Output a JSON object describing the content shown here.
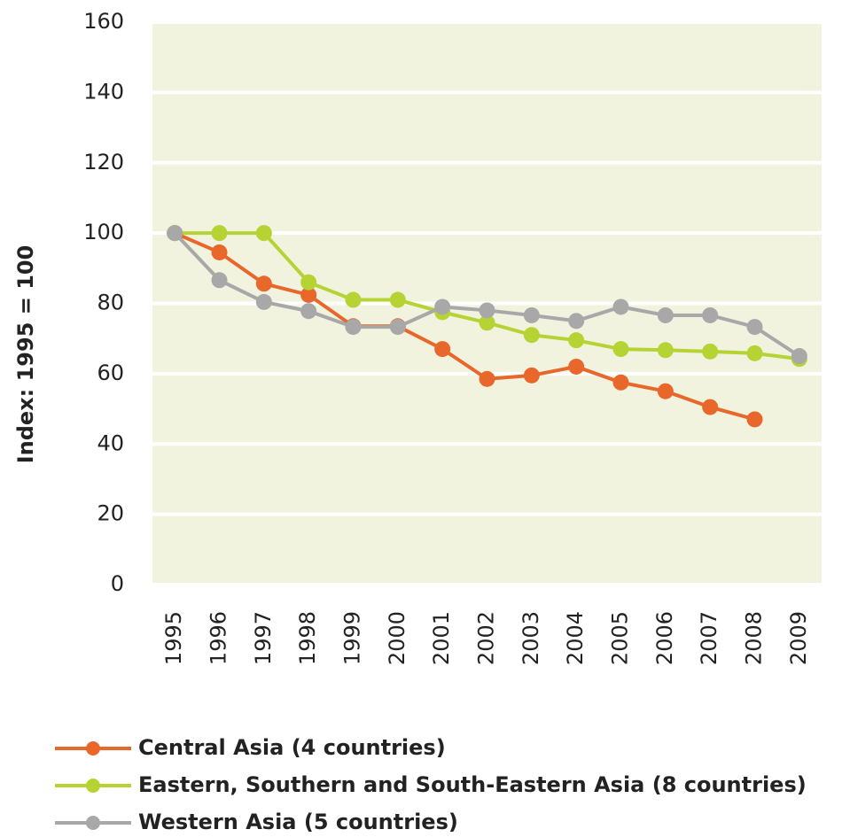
{
  "chart_data": {
    "type": "line",
    "y_label": "Index: 1995 = 100",
    "categories": [
      "1995",
      "1996",
      "1997",
      "1998",
      "1999",
      "2000",
      "2001",
      "2002",
      "2003",
      "2004",
      "2005",
      "2006",
      "2007",
      "2008",
      "2009"
    ],
    "series": [
      {
        "name": "Central Asia (4 countries)",
        "color": "#e8672a",
        "values": [
          100,
          94.5,
          85.6,
          82.4,
          73.5,
          73.5,
          67,
          58.5,
          59.5,
          62,
          57.5,
          55,
          50.5,
          47,
          null
        ]
      },
      {
        "name": "Eastern, Southern and South-Eastern Asia (8 countries)",
        "color": "#b6d334",
        "values": [
          100,
          100,
          100,
          86,
          81,
          81,
          77.5,
          74.5,
          71,
          69.5,
          67,
          66.7,
          66.3,
          65.8,
          64.2
        ]
      },
      {
        "name": "Western Asia (5 countries)",
        "color": "#a8a8a8",
        "values": [
          100,
          86.6,
          80.4,
          77.8,
          73.3,
          73.3,
          79,
          78,
          76.6,
          75,
          79,
          76.6,
          76.6,
          73.3,
          65
        ]
      }
    ],
    "ylim": [
      0,
      160
    ],
    "yticks": [
      0,
      20,
      40,
      60,
      80,
      100,
      120,
      140,
      160
    ],
    "grid": true
  }
}
